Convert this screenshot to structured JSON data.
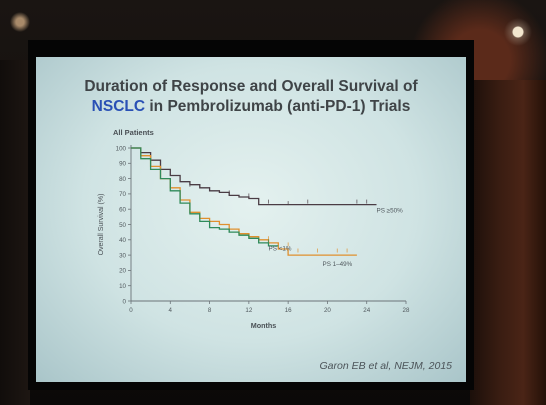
{
  "slide": {
    "title_line1": "Duration of Response and Overall Survival of",
    "title_line2_accent": "NSCLC",
    "title_line2_rest": " in Pembrolizumab (anti-PD-1) Trials",
    "citation": "Garon EB et al, NEJM, 2015",
    "accent_color": "#2950b5"
  },
  "chart_data": {
    "type": "line",
    "title": "All Patients",
    "xlabel": "Months",
    "ylabel": "Overall Survival (%)",
    "xlim": [
      0,
      28
    ],
    "ylim": [
      0,
      100
    ],
    "xticks": [
      0,
      4,
      8,
      12,
      16,
      20,
      24,
      28
    ],
    "yticks": [
      0,
      10,
      20,
      30,
      40,
      50,
      60,
      70,
      80,
      90,
      100
    ],
    "grid": false,
    "series": [
      {
        "name": "PS ≥50%",
        "color": "#4a3c44",
        "values": [
          [
            0,
            100
          ],
          [
            1,
            97
          ],
          [
            2,
            92
          ],
          [
            3,
            86
          ],
          [
            4,
            82
          ],
          [
            5,
            78
          ],
          [
            6,
            76
          ],
          [
            7,
            74
          ],
          [
            8,
            72
          ],
          [
            9,
            71
          ],
          [
            10,
            69
          ],
          [
            11,
            68
          ],
          [
            12,
            67
          ],
          [
            13,
            63
          ],
          [
            15,
            63
          ],
          [
            20,
            63
          ],
          [
            25,
            63
          ]
        ],
        "censor_marks": [
          [
            6,
            75
          ],
          [
            7,
            74
          ],
          [
            8,
            72
          ],
          [
            10,
            70
          ],
          [
            12,
            68
          ],
          [
            14,
            64
          ],
          [
            16,
            63
          ],
          [
            18,
            64
          ],
          [
            23,
            64
          ],
          [
            24,
            64
          ]
        ]
      },
      {
        "name": "PS 1–49%",
        "color": "#e0902e",
        "values": [
          [
            0,
            100
          ],
          [
            1,
            95
          ],
          [
            2,
            88
          ],
          [
            3,
            80
          ],
          [
            4,
            74
          ],
          [
            5,
            66
          ],
          [
            6,
            58
          ],
          [
            7,
            54
          ],
          [
            8,
            52
          ],
          [
            9,
            50
          ],
          [
            10,
            47
          ],
          [
            11,
            44
          ],
          [
            12,
            42
          ],
          [
            13,
            40
          ],
          [
            14,
            38
          ],
          [
            15,
            34
          ],
          [
            16,
            30
          ],
          [
            20,
            30
          ],
          [
            23,
            30
          ]
        ],
        "censor_marks": [
          [
            12,
            42
          ],
          [
            14,
            40
          ],
          [
            16,
            36
          ],
          [
            17,
            32
          ],
          [
            19,
            32
          ],
          [
            21,
            32
          ],
          [
            22,
            32
          ]
        ]
      },
      {
        "name": "PS <1%",
        "color": "#2f8a5a",
        "values": [
          [
            0,
            100
          ],
          [
            1,
            93
          ],
          [
            2,
            86
          ],
          [
            3,
            80
          ],
          [
            4,
            72
          ],
          [
            5,
            64
          ],
          [
            6,
            57
          ],
          [
            7,
            52
          ],
          [
            8,
            48
          ],
          [
            9,
            47
          ],
          [
            10,
            45
          ],
          [
            11,
            43
          ],
          [
            12,
            41
          ],
          [
            13,
            38
          ],
          [
            14,
            36
          ],
          [
            15,
            36
          ]
        ],
        "censor_marks": [
          [
            10,
            45
          ],
          [
            12,
            41
          ],
          [
            13,
            38
          ],
          [
            14,
            38
          ]
        ]
      }
    ],
    "annotations": [
      {
        "text": "PS ≥50%",
        "x": 25,
        "y": 58
      },
      {
        "text": "PS <1%",
        "x": 14,
        "y": 33
      },
      {
        "text": "PS 1–49%",
        "x": 19.5,
        "y": 23
      }
    ]
  }
}
